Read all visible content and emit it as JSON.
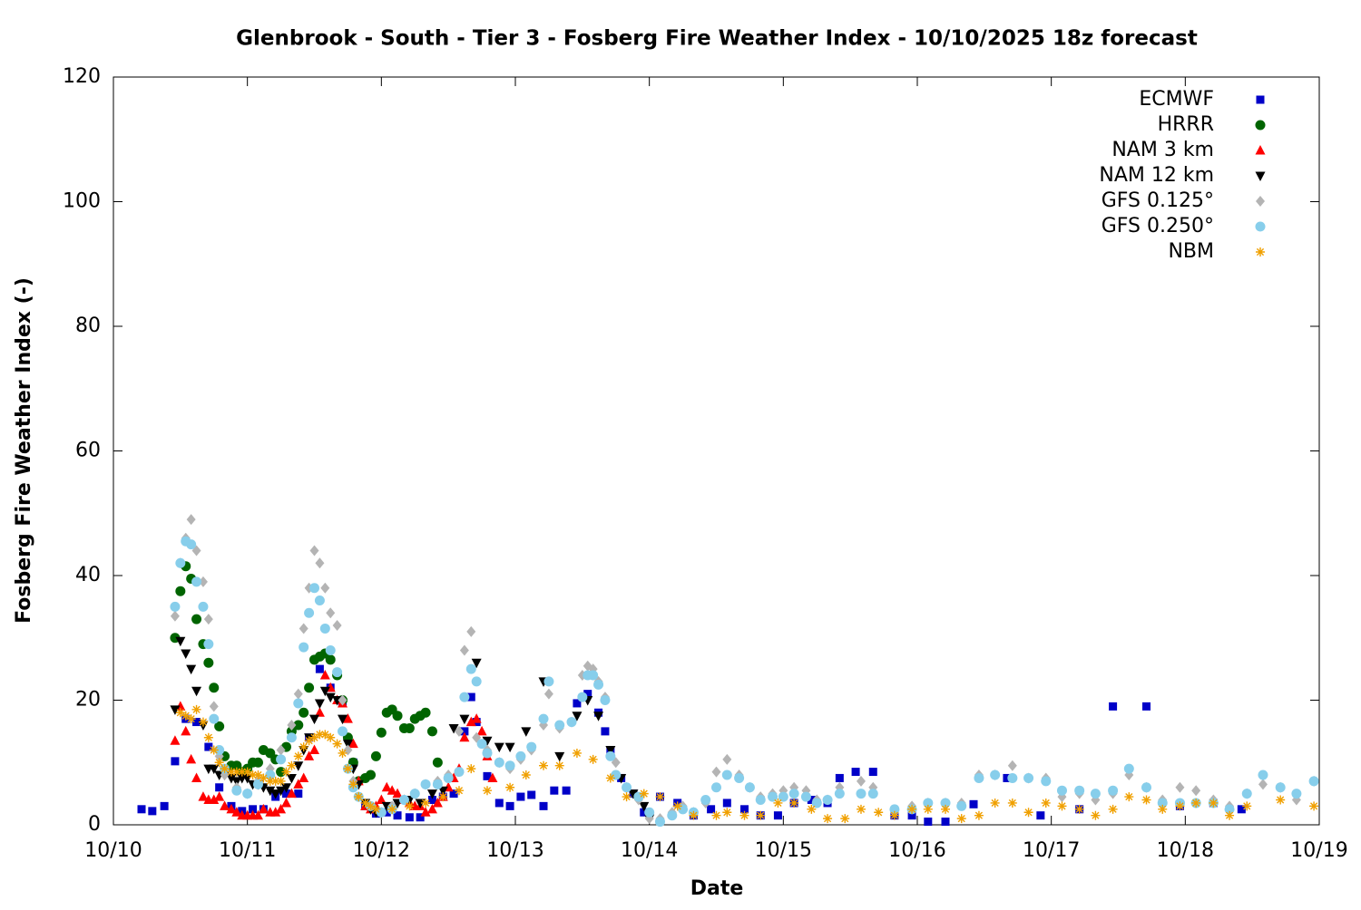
{
  "chart_data": {
    "type": "scatter",
    "title": "Glenbrook - South - Tier 3 - Fosberg Fire Weather Index - 10/10/2025 18z forecast",
    "x_label": "Date",
    "y_label": "Fosberg Fire Weather Index (-)",
    "xlim": [
      10,
      19
    ],
    "xticks": [
      {
        "value": 10,
        "label": "10/10"
      },
      {
        "value": 11,
        "label": "10/11"
      },
      {
        "value": 12,
        "label": "10/12"
      },
      {
        "value": 13,
        "label": "10/13"
      },
      {
        "value": 14,
        "label": "10/14"
      },
      {
        "value": 15,
        "label": "10/15"
      },
      {
        "value": 16,
        "label": "10/16"
      },
      {
        "value": 17,
        "label": "10/17"
      },
      {
        "value": 18,
        "label": "10/18"
      },
      {
        "value": 19,
        "label": "10/19"
      }
    ],
    "ylim": [
      0,
      120
    ],
    "yticks": [
      0,
      20,
      40,
      60,
      80,
      100,
      120
    ],
    "grid": false,
    "legend": "top-right",
    "series": [
      {
        "name": "ECMWF",
        "color": "#0000c8",
        "marker": "square",
        "x": [
          10.21,
          10.29,
          10.38,
          10.46,
          10.54,
          10.62,
          10.71,
          10.79,
          10.88,
          10.96,
          11.04,
          11.12,
          11.21,
          11.29,
          11.38,
          11.46,
          11.54,
          11.62,
          11.71,
          11.79,
          11.88,
          11.96,
          12.04,
          12.12,
          12.21,
          12.29,
          12.38,
          12.46,
          12.54,
          12.62,
          12.67,
          12.71,
          12.79,
          12.88,
          12.96,
          13.04,
          13.12,
          13.21,
          13.29,
          13.38,
          13.46,
          13.54,
          13.62,
          13.67,
          13.71,
          13.79,
          13.88,
          13.96,
          14.08,
          14.21,
          14.33,
          14.46,
          14.58,
          14.71,
          14.83,
          14.96,
          15.08,
          15.21,
          15.33,
          15.42,
          15.54,
          15.67,
          15.83,
          15.96,
          16.08,
          16.21,
          16.42,
          16.67,
          16.92,
          17.21,
          17.46,
          17.71,
          17.96,
          18.21,
          18.42
        ],
        "values": [
          2.5,
          2.2,
          3,
          10.2,
          17,
          16.5,
          12.5,
          6,
          3,
          2.2,
          2.5,
          2.5,
          4.5,
          5,
          5,
          14,
          25,
          22,
          19.5,
          10,
          3,
          1.8,
          2,
          1.5,
          1.2,
          1.2,
          4,
          4.5,
          5,
          15,
          20.5,
          16.5,
          7.8,
          3.5,
          3,
          4.5,
          4.8,
          3,
          5.5,
          5.5,
          19.5,
          21,
          18,
          15,
          12,
          7.5,
          5,
          2,
          4.5,
          3.5,
          1.5,
          2.5,
          3.5,
          2.5,
          1.5,
          1.5,
          3.5,
          4,
          3.5,
          7.5,
          8.5,
          8.5,
          1.5,
          1.5,
          0.5,
          0.5,
          3.3,
          7.5,
          1.5,
          2.5,
          19,
          19,
          3,
          3.5,
          2.5
        ]
      },
      {
        "name": "HRRR",
        "color": "#006400",
        "marker": "circle",
        "x": [
          10.46,
          10.5,
          10.54,
          10.58,
          10.62,
          10.67,
          10.71,
          10.75,
          10.79,
          10.83,
          10.88,
          10.92,
          10.96,
          11.0,
          11.04,
          11.08,
          11.12,
          11.17,
          11.21,
          11.25,
          11.29,
          11.33,
          11.38,
          11.42,
          11.46,
          11.5,
          11.54,
          11.58,
          11.62,
          11.67,
          11.71,
          11.75,
          11.79,
          11.83,
          11.88,
          11.92,
          11.96,
          12.0,
          12.04,
          12.08,
          12.12,
          12.17,
          12.21,
          12.25,
          12.29,
          12.33,
          12.38,
          12.42
        ],
        "values": [
          30,
          37.5,
          41.5,
          39.5,
          33,
          29,
          26,
          22,
          15.8,
          11,
          9.5,
          9.5,
          8.5,
          9,
          10,
          10,
          12,
          11.5,
          10.5,
          8.5,
          12.5,
          15,
          16,
          18,
          22,
          26.5,
          27,
          27.5,
          26.5,
          24,
          20,
          14,
          10,
          7,
          7.5,
          8,
          11,
          14.8,
          18,
          18.5,
          17.5,
          15.5,
          15.5,
          17,
          17.5,
          18,
          15,
          10
        ]
      },
      {
        "name": "NAM 3 km",
        "color": "#ff0000",
        "marker": "triangle-up",
        "x": [
          10.46,
          10.5,
          10.54,
          10.58,
          10.62,
          10.67,
          10.71,
          10.75,
          10.79,
          10.83,
          10.88,
          10.92,
          10.96,
          11.0,
          11.04,
          11.08,
          11.12,
          11.17,
          11.21,
          11.25,
          11.29,
          11.33,
          11.38,
          11.42,
          11.46,
          11.5,
          11.54,
          11.58,
          11.62,
          11.67,
          11.71,
          11.75,
          11.79,
          11.83,
          11.88,
          11.92,
          11.96,
          12.0,
          12.04,
          12.08,
          12.12,
          12.17,
          12.21,
          12.25,
          12.29,
          12.33,
          12.38,
          12.42,
          12.46,
          12.5,
          12.54,
          12.58,
          12.62,
          12.67,
          12.71,
          12.75,
          12.79,
          12.83
        ],
        "values": [
          13.5,
          19,
          15,
          10.5,
          7.5,
          4.5,
          4,
          4,
          4.5,
          3,
          2.5,
          2,
          1.5,
          1.5,
          1.5,
          1.5,
          2.5,
          2,
          2,
          2.5,
          3.5,
          5,
          6.5,
          7.5,
          11,
          12,
          18,
          24,
          22,
          20,
          19.5,
          17,
          13,
          7,
          3,
          2.5,
          3,
          4,
          6,
          5.5,
          5,
          4,
          3.5,
          3,
          3,
          2,
          2.5,
          3.5,
          4.5,
          6,
          7.5,
          9,
          14,
          16.5,
          17,
          15,
          11,
          7.5
        ]
      },
      {
        "name": "NAM 12 km",
        "color": "#000000",
        "marker": "triangle-down",
        "x": [
          10.46,
          10.5,
          10.54,
          10.58,
          10.62,
          10.67,
          10.71,
          10.75,
          10.79,
          10.83,
          10.88,
          10.92,
          10.96,
          11.0,
          11.04,
          11.08,
          11.12,
          11.17,
          11.21,
          11.25,
          11.29,
          11.33,
          11.38,
          11.42,
          11.46,
          11.5,
          11.54,
          11.58,
          11.62,
          11.67,
          11.71,
          11.75,
          11.79,
          11.83,
          11.88,
          11.92,
          11.96,
          12.04,
          12.12,
          12.21,
          12.29,
          12.38,
          12.46,
          12.54,
          12.62,
          12.71,
          12.79,
          12.88,
          12.96,
          13.08,
          13.21,
          13.33,
          13.46,
          13.54,
          13.62,
          13.71,
          13.79,
          13.88,
          13.96,
          14.0
        ],
        "values": [
          18.5,
          29.5,
          27.5,
          25,
          21.5,
          16,
          9,
          9,
          8,
          8,
          7.5,
          7,
          7.5,
          7.5,
          6.5,
          6.5,
          6,
          5.5,
          5,
          5.5,
          6,
          7.5,
          9.5,
          12,
          14,
          17,
          19.5,
          21.5,
          20.5,
          20,
          17,
          13,
          9,
          6.5,
          3.5,
          2.5,
          2,
          3,
          3.5,
          4,
          3.5,
          5,
          5.5,
          15.5,
          17,
          26,
          13.5,
          12.5,
          12.5,
          15,
          23,
          11,
          17.5,
          20,
          17.5,
          12,
          7.5,
          5,
          3,
          1
        ]
      },
      {
        "name": "GFS 0.125°",
        "color": "#b4b4b4",
        "marker": "diamond",
        "x": [
          10.46,
          10.5,
          10.54,
          10.58,
          10.62,
          10.67,
          10.71,
          10.75,
          10.79,
          10.83,
          10.92,
          11.0,
          11.08,
          11.17,
          11.25,
          11.33,
          11.38,
          11.42,
          11.46,
          11.5,
          11.54,
          11.58,
          11.62,
          11.67,
          11.71,
          11.75,
          11.79,
          11.83,
          11.92,
          12.0,
          12.08,
          12.17,
          12.25,
          12.33,
          12.42,
          12.5,
          12.58,
          12.62,
          12.67,
          12.71,
          12.79,
          12.88,
          12.96,
          13.04,
          13.12,
          13.21,
          13.25,
          13.33,
          13.42,
          13.5,
          13.54,
          13.58,
          13.62,
          13.67,
          13.75,
          13.83,
          13.92,
          14.0,
          14.08,
          14.17,
          14.25,
          14.33,
          14.42,
          14.5,
          14.58,
          14.67,
          14.75,
          14.83,
          14.92,
          15.0,
          15.08,
          15.17,
          15.25,
          15.33,
          15.42,
          15.58,
          15.67,
          15.83,
          15.96,
          16.08,
          16.21,
          16.33,
          16.46,
          16.58,
          16.71,
          16.83,
          16.96,
          17.08,
          17.21,
          17.33,
          17.46,
          17.58,
          17.71,
          17.83,
          17.96,
          18.08,
          18.21,
          18.33,
          18.46,
          18.58,
          18.71,
          18.83,
          18.96
        ],
        "values": [
          33.5,
          42,
          46,
          49,
          44,
          39,
          33,
          19,
          11,
          8,
          6,
          5,
          7,
          9,
          12,
          16,
          21,
          31.5,
          38,
          44,
          42,
          38,
          34,
          32,
          20,
          12,
          7,
          4.5,
          3,
          2,
          3,
          4,
          5,
          6.5,
          7,
          8,
          15,
          28,
          31,
          14,
          12,
          10,
          9,
          10.5,
          12,
          16,
          21,
          15.5,
          16.5,
          24,
          25.5,
          25,
          23,
          20.5,
          10,
          6,
          4,
          1,
          1,
          2,
          3,
          2,
          3.5,
          8.5,
          10.5,
          8,
          6,
          4.5,
          5,
          5.5,
          6,
          5.5,
          4,
          4,
          6,
          7,
          6,
          2,
          3,
          3.5,
          3.5,
          3.5,
          8,
          8,
          9.5,
          7.5,
          7.5,
          4.5,
          5,
          4,
          5,
          8,
          6,
          4,
          6,
          5.5,
          4,
          3,
          5,
          6.5,
          6,
          4,
          7
        ]
      },
      {
        "name": "GFS 0.250°",
        "color": "#87ceeb",
        "marker": "circle",
        "x": [
          10.46,
          10.5,
          10.54,
          10.58,
          10.62,
          10.67,
          10.71,
          10.75,
          10.79,
          10.83,
          10.92,
          11.0,
          11.08,
          11.17,
          11.25,
          11.33,
          11.38,
          11.42,
          11.46,
          11.5,
          11.54,
          11.58,
          11.62,
          11.67,
          11.71,
          11.75,
          11.79,
          11.83,
          11.92,
          12.0,
          12.08,
          12.17,
          12.25,
          12.33,
          12.42,
          12.5,
          12.58,
          12.62,
          12.67,
          12.71,
          12.75,
          12.79,
          12.88,
          12.96,
          13.04,
          13.12,
          13.21,
          13.25,
          13.33,
          13.42,
          13.5,
          13.54,
          13.58,
          13.62,
          13.67,
          13.71,
          13.75,
          13.83,
          13.92,
          14.0,
          14.08,
          14.17,
          14.25,
          14.33,
          14.42,
          14.5,
          14.58,
          14.67,
          14.75,
          14.83,
          14.92,
          15.0,
          15.08,
          15.17,
          15.25,
          15.33,
          15.42,
          15.58,
          15.67,
          15.83,
          15.96,
          16.08,
          16.21,
          16.33,
          16.46,
          16.58,
          16.71,
          16.83,
          16.96,
          17.08,
          17.21,
          17.33,
          17.46,
          17.58,
          17.71,
          17.83,
          17.96,
          18.08,
          18.21,
          18.33,
          18.46,
          18.58,
          18.71,
          18.83,
          18.96
        ],
        "values": [
          35,
          42,
          45.5,
          45,
          39,
          35,
          29,
          17,
          12,
          9,
          5.5,
          5,
          6.5,
          8,
          10.5,
          14,
          19.5,
          28.5,
          34,
          38,
          36,
          31.5,
          28,
          24.5,
          15,
          9,
          6,
          4.5,
          3,
          2,
          2.5,
          4,
          5,
          6.5,
          6.5,
          7.5,
          8.5,
          20.5,
          25,
          23,
          13,
          11.5,
          10,
          9.5,
          11,
          12.5,
          17,
          23,
          16,
          16.5,
          20.5,
          24,
          24,
          22.5,
          20,
          11,
          8,
          6,
          4.5,
          2,
          0.5,
          1.5,
          2.5,
          2,
          4,
          6,
          8,
          7.5,
          6,
          4,
          4.5,
          4.5,
          5,
          4.5,
          3.5,
          4,
          5,
          5,
          5,
          2.5,
          2.5,
          3.5,
          3.5,
          3,
          7.5,
          8,
          7.5,
          7.5,
          7,
          5.5,
          5.5,
          5,
          5.5,
          9,
          6,
          3.5,
          3.5,
          3.5,
          3.5,
          2.5,
          5,
          8,
          6,
          5,
          7
        ]
      },
      {
        "name": "NBM",
        "color": "#f0a000",
        "marker": "asterisk",
        "x": [
          10.5,
          10.54,
          10.58,
          10.62,
          10.67,
          10.71,
          10.75,
          10.79,
          10.83,
          10.88,
          10.92,
          10.96,
          11.0,
          11.04,
          11.08,
          11.12,
          11.17,
          11.21,
          11.25,
          11.29,
          11.33,
          11.38,
          11.42,
          11.46,
          11.5,
          11.54,
          11.58,
          11.62,
          11.67,
          11.71,
          11.75,
          11.79,
          11.83,
          11.88,
          11.92,
          11.96,
          12.08,
          12.21,
          12.33,
          12.46,
          12.58,
          12.67,
          12.79,
          12.96,
          13.08,
          13.21,
          13.33,
          13.46,
          13.58,
          13.71,
          13.83,
          13.96,
          14.08,
          14.21,
          14.33,
          14.5,
          14.58,
          14.71,
          14.83,
          14.96,
          15.08,
          15.21,
          15.33,
          15.46,
          15.58,
          15.71,
          15.83,
          15.96,
          16.08,
          16.21,
          16.33,
          16.46,
          16.58,
          16.71,
          16.83,
          16.96,
          17.08,
          17.21,
          17.33,
          17.46,
          17.58,
          17.71,
          17.83,
          17.96,
          18.08,
          18.21,
          18.33,
          18.46,
          18.71,
          18.96
        ],
        "values": [
          18,
          17.5,
          17,
          18.5,
          16.5,
          14,
          12,
          10,
          9,
          8.5,
          8.5,
          8.5,
          8.5,
          8,
          8,
          7.5,
          7,
          7,
          7,
          8.5,
          9.5,
          11,
          12.5,
          13.5,
          14,
          14.5,
          14.5,
          14,
          13,
          11.5,
          9,
          6.5,
          4.5,
          3.5,
          3,
          2.5,
          2.5,
          3,
          3.5,
          4.5,
          5.5,
          9,
          5.5,
          6,
          8,
          9.5,
          9.5,
          11.5,
          10.5,
          7.5,
          4.5,
          5,
          4.5,
          3,
          1.5,
          1.5,
          2,
          1.5,
          1.5,
          3.5,
          3.5,
          2.5,
          1,
          1,
          2.5,
          2,
          1.5,
          2.5,
          2.5,
          2.5,
          1,
          1.5,
          3.5,
          3.5,
          2,
          3.5,
          3,
          2.5,
          1.5,
          2.5,
          4.5,
          4,
          2.5,
          3,
          3.5,
          3.5,
          1.5,
          3,
          4,
          3
        ]
      }
    ]
  }
}
